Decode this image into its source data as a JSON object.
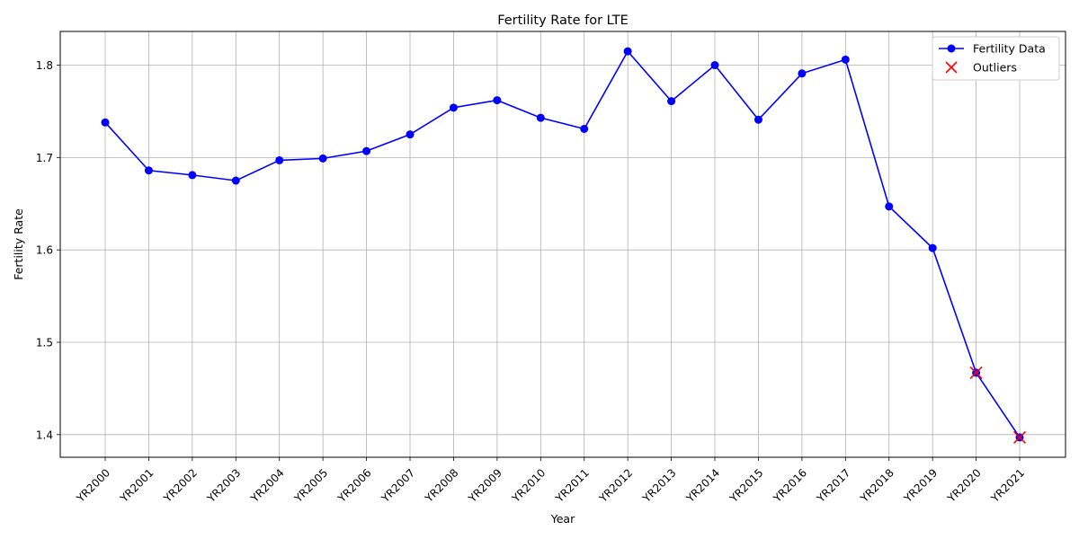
{
  "chart_data": {
    "type": "line",
    "title": "Fertility Rate for LTE",
    "xlabel": "Year",
    "ylabel": "Fertility Rate",
    "categories": [
      "YR2000",
      "YR2001",
      "YR2002",
      "YR2003",
      "YR2004",
      "YR2005",
      "YR2006",
      "YR2007",
      "YR2008",
      "YR2009",
      "YR2010",
      "YR2011",
      "YR2012",
      "YR2013",
      "YR2014",
      "YR2015",
      "YR2016",
      "YR2017",
      "YR2018",
      "YR2019",
      "YR2020",
      "YR2021"
    ],
    "series": [
      {
        "name": "Fertility Data",
        "color": "#0000ff",
        "marker": "circle",
        "values": [
          1.738,
          1.686,
          1.681,
          1.675,
          1.697,
          1.699,
          1.707,
          1.725,
          1.754,
          1.762,
          1.743,
          1.731,
          1.815,
          1.761,
          1.8,
          1.741,
          1.791,
          1.806,
          1.647,
          1.602,
          1.467,
          1.397
        ]
      }
    ],
    "outliers": {
      "name": "Outliers",
      "color": "#ff0000",
      "marker": "x",
      "points": [
        {
          "x": "YR2020",
          "y": 1.467
        },
        {
          "x": "YR2021",
          "y": 1.397
        }
      ]
    },
    "yticks": [
      "1.4",
      "1.5",
      "1.6",
      "1.7",
      "1.8"
    ],
    "ylim": [
      1.3755,
      1.8365
    ],
    "grid": true,
    "legend_position": "top-right"
  }
}
